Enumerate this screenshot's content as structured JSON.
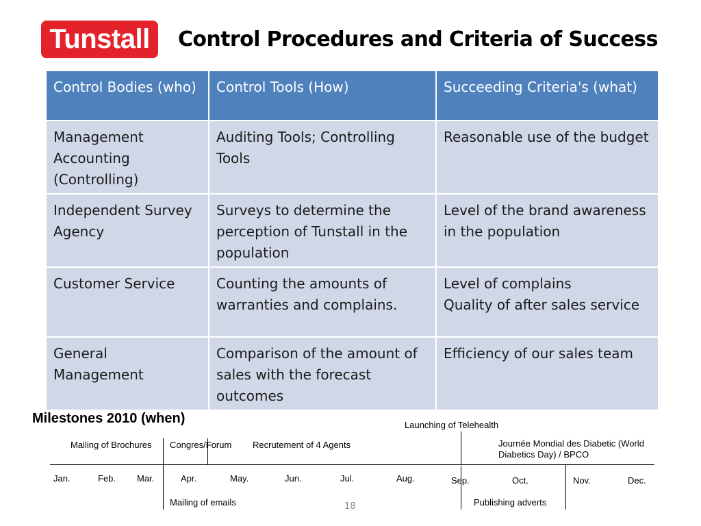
{
  "logo": {
    "text": "Tunstall",
    "color": "#e3222b"
  },
  "title": "Control Procedures and Criteria of Success",
  "table": {
    "headers": [
      "Control Bodies (who)",
      "Control Tools (How)",
      "Succeeding Criteria's (what)"
    ],
    "rows": [
      [
        "Management Accounting (Controlling)",
        "Auditing Tools; Controlling Tools",
        "Reasonable use of the budget"
      ],
      [
        "Independent Survey Agency",
        "Surveys to determine the perception of Tunstall in the population",
        "Level of the brand awareness in the population"
      ],
      [
        "Customer Service",
        "Counting the amounts of warranties and complains.",
        "Level of complains\nQuality of after sales service"
      ],
      [
        "General Management",
        "Comparison of the amount of sales with the forecast outcomes",
        "Efficiency of our sales team"
      ]
    ],
    "header_color": "#4f81bd",
    "row_color": "#d0d8e8"
  },
  "milestones": {
    "title": "Milestones 2010 (when)",
    "months": [
      "Jan.",
      "Feb.",
      "Mar.",
      "Apr.",
      "May.",
      "Jun.",
      "Jul.",
      "Aug.",
      "Sep.",
      "Oct.",
      "Nov.",
      "Dec."
    ],
    "events_above": [
      "Mailing of Brochures",
      "Congres/Forum",
      "Recrutement of 4 Agents",
      "Launching of Telehealth",
      "Journée Mondial des Diabetic (World Diabetics Day) / BPCO"
    ],
    "events_below": [
      "Mailing of emails",
      "Publishing adverts"
    ]
  },
  "page_number": "18"
}
